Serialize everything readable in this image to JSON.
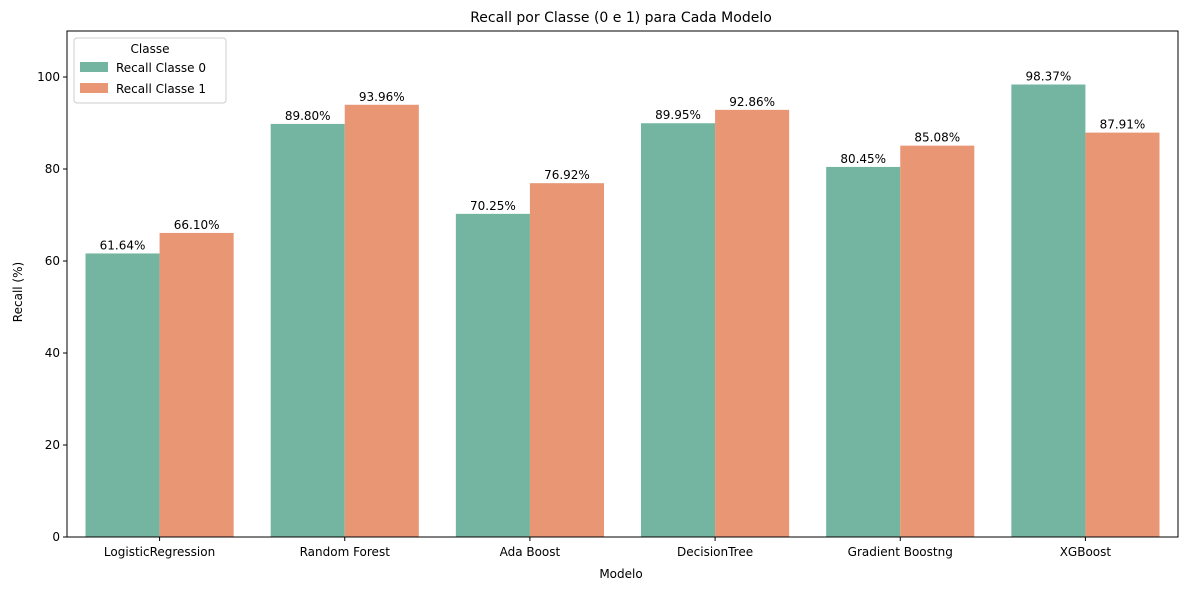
{
  "chart_data": {
    "type": "bar",
    "title": "Recall por Classe (0 e 1) para Cada Modelo",
    "xlabel": "Modelo",
    "ylabel": "Recall (%)",
    "ylim": [
      0,
      110
    ],
    "yticks": [
      0,
      20,
      40,
      60,
      80,
      100
    ],
    "grid": false,
    "categories": [
      "LogisticRegression",
      "Random Forest",
      "Ada Boost",
      "DecisionTree",
      "Gradient Boostng",
      "XGBoost"
    ],
    "series": [
      {
        "name": "Recall Classe 0",
        "color": "#73b5a1",
        "values": [
          61.64,
          89.8,
          70.25,
          89.95,
          80.45,
          98.37
        ],
        "labels": [
          "61.64%",
          "89.80%",
          "70.25%",
          "89.95%",
          "80.45%",
          "98.37%"
        ]
      },
      {
        "name": "Recall Classe 1",
        "color": "#e99674",
        "values": [
          66.1,
          93.96,
          76.92,
          92.86,
          85.08,
          87.91
        ],
        "labels": [
          "66.10%",
          "93.96%",
          "76.92%",
          "92.86%",
          "85.08%",
          "87.91%"
        ]
      }
    ],
    "legend": {
      "title": "Classe",
      "placement": "top-left"
    }
  }
}
